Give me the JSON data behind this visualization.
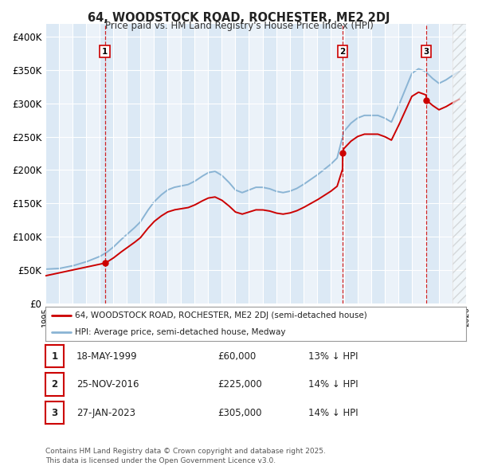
{
  "title": "64, WOODSTOCK ROAD, ROCHESTER, ME2 2DJ",
  "subtitle": "Price paid vs. HM Land Registry's House Price Index (HPI)",
  "ylim": [
    0,
    420000
  ],
  "yticks": [
    0,
    50000,
    100000,
    150000,
    200000,
    250000,
    300000,
    350000,
    400000
  ],
  "ytick_labels": [
    "£0",
    "£50K",
    "£100K",
    "£150K",
    "£200K",
    "£250K",
    "£300K",
    "£350K",
    "£400K"
  ],
  "background_color": "#ffffff",
  "plot_bg_color": "#dce9f5",
  "grid_color": "#ffffff",
  "xlim_start": 1995,
  "xlim_end": 2026,
  "sale1_x": 1999.375,
  "sale1_y": 60000,
  "sale2_x": 2016.9,
  "sale2_y": 225000,
  "sale3_x": 2023.07,
  "sale3_y": 305000,
  "legend_line1": "64, WOODSTOCK ROAD, ROCHESTER, ME2 2DJ (semi-detached house)",
  "legend_line2": "HPI: Average price, semi-detached house, Medway",
  "table_rows": [
    {
      "num": "1",
      "date": "18-MAY-1999",
      "price": "£60,000",
      "hpi": "13% ↓ HPI"
    },
    {
      "num": "2",
      "date": "25-NOV-2016",
      "price": "£225,000",
      "hpi": "14% ↓ HPI"
    },
    {
      "num": "3",
      "date": "27-JAN-2023",
      "price": "£305,000",
      "hpi": "14% ↓ HPI"
    }
  ],
  "footnote": "Contains HM Land Registry data © Crown copyright and database right 2025.\nThis data is licensed under the Open Government Licence v3.0.",
  "red_color": "#cc0000",
  "blue_color": "#8ab4d4",
  "dashed_color": "#cc0000",
  "hpi_x": [
    1995.0,
    1995.5,
    1996.0,
    1996.5,
    1997.0,
    1997.5,
    1998.0,
    1998.5,
    1999.0,
    1999.5,
    2000.0,
    2000.5,
    2001.0,
    2001.5,
    2002.0,
    2002.5,
    2003.0,
    2003.5,
    2004.0,
    2004.5,
    2005.0,
    2005.5,
    2006.0,
    2006.5,
    2007.0,
    2007.5,
    2008.0,
    2008.5,
    2009.0,
    2009.5,
    2010.0,
    2010.5,
    2011.0,
    2011.5,
    2012.0,
    2012.5,
    2013.0,
    2013.5,
    2014.0,
    2014.5,
    2015.0,
    2015.5,
    2016.0,
    2016.5,
    2017.0,
    2017.5,
    2018.0,
    2018.5,
    2019.0,
    2019.5,
    2020.0,
    2020.5,
    2021.0,
    2021.5,
    2022.0,
    2022.5,
    2023.0,
    2023.5,
    2024.0,
    2024.5,
    2025.0,
    2025.5
  ],
  "hpi_y": [
    51000,
    51500,
    52000,
    54000,
    56000,
    59000,
    62000,
    66000,
    70000,
    76000,
    84000,
    94000,
    103000,
    112000,
    122000,
    138000,
    152000,
    162000,
    170000,
    174000,
    176000,
    178000,
    183000,
    190000,
    196000,
    198000,
    192000,
    182000,
    170000,
    166000,
    170000,
    174000,
    174000,
    172000,
    168000,
    166000,
    168000,
    172000,
    178000,
    185000,
    192000,
    200000,
    208000,
    218000,
    258000,
    270000,
    278000,
    282000,
    282000,
    282000,
    278000,
    272000,
    295000,
    320000,
    345000,
    352000,
    348000,
    338000,
    330000,
    335000,
    342000,
    348000
  ]
}
